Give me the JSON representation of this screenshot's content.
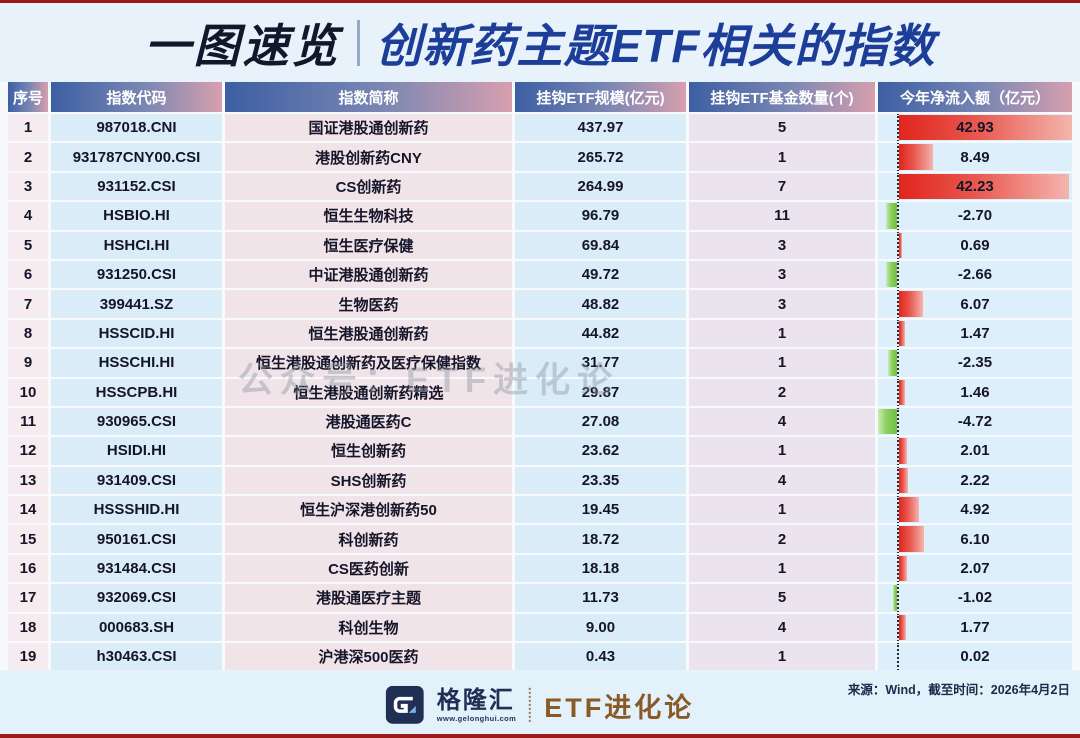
{
  "title": {
    "badge": "一图速览",
    "separator": "|",
    "main": "创新药主题ETF相关的指数"
  },
  "watermark": "公众号：ETF进化论",
  "footer": {
    "source": "来源：Wind，截至时间：2026年4月2日",
    "brand_name": "格隆汇",
    "brand_url": "www.gelonghui.com",
    "brand_account": "ETF进化论"
  },
  "colors": {
    "top_bottom_line": "#9b1b1b",
    "header_gradient_left": "#3c5fa3",
    "header_gradient_right": "#d79fae",
    "positive_bar": "#e1251d",
    "negative_bar": "#6ec13d",
    "title_badge": "#10182c",
    "title_main": "#1c3e99"
  },
  "chart_data": {
    "type": "table",
    "title": "创新药主题ETF相关的指数",
    "columns": [
      "序号",
      "指数代码",
      "指数简称",
      "挂钩ETF规模(亿元)",
      "挂钩ETF基金数量(个)",
      "今年净流入额（亿元）"
    ],
    "inflow_axis": {
      "max": 42.93,
      "min": -4.72,
      "bar_style": "databar, red positive right of dotted zero axis, green negative left"
    },
    "rows": [
      {
        "no": "1",
        "code": "987018.CNI",
        "name": "国证港股通创新药",
        "scale": "437.97",
        "count": "5",
        "inflow": "42.93"
      },
      {
        "no": "2",
        "code": "931787CNY00.CSI",
        "name": "港股创新药CNY",
        "scale": "265.72",
        "count": "1",
        "inflow": "8.49"
      },
      {
        "no": "3",
        "code": "931152.CSI",
        "name": "CS创新药",
        "scale": "264.99",
        "count": "7",
        "inflow": "42.23"
      },
      {
        "no": "4",
        "code": "HSBIO.HI",
        "name": "恒生生物科技",
        "scale": "96.79",
        "count": "11",
        "inflow": "-2.70"
      },
      {
        "no": "5",
        "code": "HSHCI.HI",
        "name": "恒生医疗保健",
        "scale": "69.84",
        "count": "3",
        "inflow": "0.69"
      },
      {
        "no": "6",
        "code": "931250.CSI",
        "name": "中证港股通创新药",
        "scale": "49.72",
        "count": "3",
        "inflow": "-2.66"
      },
      {
        "no": "7",
        "code": "399441.SZ",
        "name": "生物医药",
        "scale": "48.82",
        "count": "3",
        "inflow": "6.07"
      },
      {
        "no": "8",
        "code": "HSSCID.HI",
        "name": "恒生港股通创新药",
        "scale": "44.82",
        "count": "1",
        "inflow": "1.47"
      },
      {
        "no": "9",
        "code": "HSSCHI.HI",
        "name": "恒生港股通创新药及医疗保健指数",
        "scale": "31.77",
        "count": "1",
        "inflow": "-2.35"
      },
      {
        "no": "10",
        "code": "HSSCPB.HI",
        "name": "恒生港股通创新药精选",
        "scale": "29.87",
        "count": "2",
        "inflow": "1.46"
      },
      {
        "no": "11",
        "code": "930965.CSI",
        "name": "港股通医药C",
        "scale": "27.08",
        "count": "4",
        "inflow": "-4.72"
      },
      {
        "no": "12",
        "code": "HSIDI.HI",
        "name": "恒生创新药",
        "scale": "23.62",
        "count": "1",
        "inflow": "2.01"
      },
      {
        "no": "13",
        "code": "931409.CSI",
        "name": "SHS创新药",
        "scale": "23.35",
        "count": "4",
        "inflow": "2.22"
      },
      {
        "no": "14",
        "code": "HSSSHID.HI",
        "name": "恒生沪深港创新药50",
        "scale": "19.45",
        "count": "1",
        "inflow": "4.92"
      },
      {
        "no": "15",
        "code": "950161.CSI",
        "name": "科创新药",
        "scale": "18.72",
        "count": "2",
        "inflow": "6.10"
      },
      {
        "no": "16",
        "code": "931484.CSI",
        "name": "CS医药创新",
        "scale": "18.18",
        "count": "1",
        "inflow": "2.07"
      },
      {
        "no": "17",
        "code": "932069.CSI",
        "name": "港股通医疗主题",
        "scale": "11.73",
        "count": "5",
        "inflow": "-1.02"
      },
      {
        "no": "18",
        "code": "000683.SH",
        "name": "科创生物",
        "scale": "9.00",
        "count": "4",
        "inflow": "1.77"
      },
      {
        "no": "19",
        "code": "h30463.CSI",
        "name": "沪港深500医药",
        "scale": "0.43",
        "count": "1",
        "inflow": "0.02"
      }
    ]
  }
}
